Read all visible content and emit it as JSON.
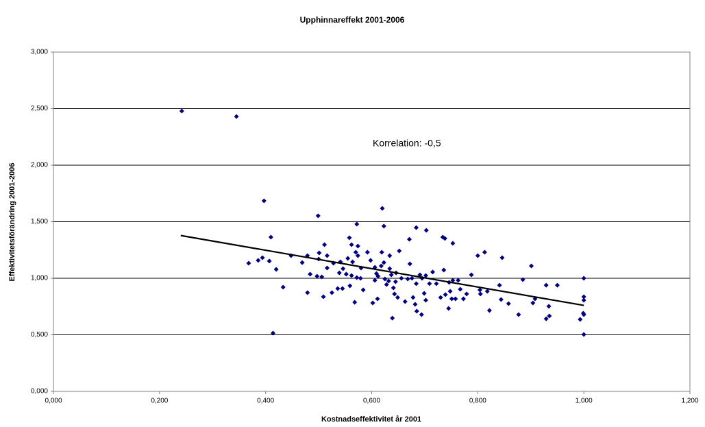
{
  "chart_data": {
    "type": "scatter",
    "title": "Upphinnareffekt 2001-2006",
    "x_label": "Kostnadseffektivitet år 2001",
    "y_label": "Effektivitetsförändring 2001-2006",
    "annotation": "Korrelation: -0,5",
    "color": "#000080",
    "trend_color": "#000000",
    "grid": true,
    "x": [
      0.242,
      0.345,
      0.397,
      0.41,
      0.414,
      0.368,
      0.386,
      0.394,
      0.407,
      0.42,
      0.433,
      0.448,
      0.469,
      0.479,
      0.479,
      0.484,
      0.497,
      0.499,
      0.5,
      0.501,
      0.506,
      0.509,
      0.511,
      0.516,
      0.516,
      0.525,
      0.528,
      0.536,
      0.539,
      0.541,
      0.545,
      0.546,
      0.552,
      0.555,
      0.558,
      0.559,
      0.562,
      0.562,
      0.564,
      0.568,
      0.57,
      0.572,
      0.572,
      0.574,
      0.574,
      0.579,
      0.58,
      0.584,
      0.592,
      0.598,
      0.602,
      0.606,
      0.606,
      0.609,
      0.611,
      0.612,
      0.618,
      0.62,
      0.623,
      0.619,
      0.623,
      0.625,
      0.628,
      0.632,
      0.634,
      0.634,
      0.637,
      0.639,
      0.641,
      0.643,
      0.645,
      0.646,
      0.649,
      0.652,
      0.656,
      0.663,
      0.668,
      0.672,
      0.671,
      0.676,
      0.678,
      0.682,
      0.684,
      0.684,
      0.685,
      0.691,
      0.694,
      0.695,
      0.699,
      0.702,
      0.702,
      0.703,
      0.709,
      0.715,
      0.722,
      0.73,
      0.734,
      0.738,
      0.736,
      0.739,
      0.745,
      0.746,
      0.748,
      0.751,
      0.753,
      0.753,
      0.758,
      0.763,
      0.767,
      0.773,
      0.779,
      0.788,
      0.8,
      0.804,
      0.805,
      0.813,
      0.818,
      0.822,
      0.841,
      0.844,
      0.846,
      0.858,
      0.877,
      0.885,
      0.901,
      0.904,
      0.908,
      0.929,
      0.929,
      0.934,
      0.935,
      0.95,
      0.993,
      1.0,
      1.0,
      1.0,
      1.0,
      1.0,
      0.999
    ],
    "values": [
      2.479,
      2.43,
      1.685,
      1.364,
      0.515,
      1.133,
      1.158,
      1.182,
      1.152,
      1.079,
      0.921,
      1.2,
      1.139,
      1.2,
      0.873,
      1.036,
      1.018,
      1.552,
      1.17,
      1.224,
      1.012,
      0.836,
      1.297,
      1.2,
      1.091,
      0.873,
      1.133,
      0.909,
      1.048,
      1.145,
      0.909,
      1.085,
      1.036,
      1.176,
      1.358,
      0.933,
      1.024,
      1.297,
      1.145,
      0.788,
      1.23,
      1.479,
      1.006,
      1.285,
      1.2,
      1.0,
      1.091,
      0.897,
      1.23,
      1.158,
      0.782,
      1.097,
      0.982,
      1.042,
      0.818,
      1.018,
      1.109,
      1.618,
      1.461,
      1.23,
      1.139,
      0.994,
      0.945,
      0.976,
      1.2,
      1.085,
      1.03,
      0.648,
      0.915,
      0.861,
      0.97,
      1.048,
      0.83,
      1.242,
      1.0,
      0.794,
      0.994,
      1.127,
      1.345,
      1.0,
      0.83,
      0.77,
      0.952,
      1.448,
      0.709,
      1.03,
      0.679,
      1.0,
      0.867,
      0.806,
      1.024,
      1.424,
      0.952,
      1.055,
      0.952,
      0.83,
      1.364,
      1.352,
      1.073,
      0.855,
      0.733,
      0.964,
      0.885,
      0.818,
      1.309,
      0.982,
      0.818,
      0.982,
      0.903,
      0.818,
      0.861,
      1.03,
      1.2,
      0.897,
      0.861,
      1.23,
      0.885,
      0.715,
      0.939,
      0.812,
      1.182,
      0.776,
      0.679,
      0.988,
      1.109,
      0.782,
      0.818,
      0.939,
      0.642,
      0.752,
      0.667,
      0.939,
      0.636,
      1.0,
      0.836,
      0.806,
      0.679,
      0.503,
      0.691
    ],
    "trendline": {
      "x": [
        0.24,
        1.0
      ],
      "values": [
        1.378,
        0.76
      ]
    },
    "xlim": [
      0,
      1.2
    ],
    "xticks": [
      {
        "value": 0,
        "label": "0,000"
      },
      {
        "value": 0.2,
        "label": "0,200"
      },
      {
        "value": 0.4,
        "label": "0,400"
      },
      {
        "value": 0.6,
        "label": "0,600"
      },
      {
        "value": 0.8,
        "label": "0,800"
      },
      {
        "value": 1.0,
        "label": "1,000"
      },
      {
        "value": 1.2,
        "label": "1,200"
      }
    ],
    "ylim": [
      0,
      3
    ],
    "yticks": [
      {
        "value": 0,
        "label": "0,000"
      },
      {
        "value": 0.5,
        "label": "0,500"
      },
      {
        "value": 1.0,
        "label": "1,000"
      },
      {
        "value": 1.5,
        "label": "1,500"
      },
      {
        "value": 2.0,
        "label": "2,000"
      },
      {
        "value": 2.5,
        "label": "2,500"
      },
      {
        "value": 3.0,
        "label": "3,000"
      }
    ]
  }
}
